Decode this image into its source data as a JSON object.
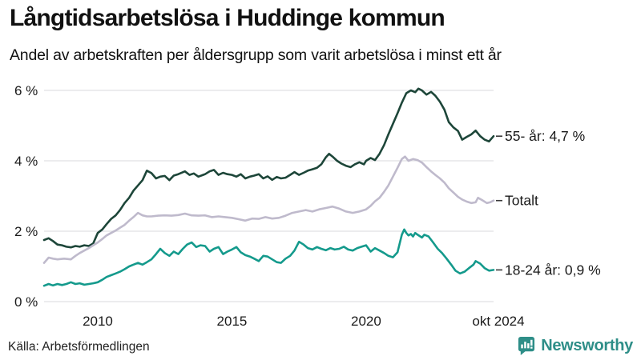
{
  "footer": {
    "source": "Källa: Arbetsförmedlingen",
    "brand": "Newsworthy",
    "brand_color": "#2e8e88",
    "brand_icon": "newsworthy-speech-bubble-chart-icon"
  },
  "chart_data": {
    "type": "line",
    "title": "Långtidsarbetslösa i Huddinge kommun",
    "subtitle": "Andel av arbetskraften per åldersgrupp som varit arbetslösa i minst ett år",
    "unit": "%",
    "grid": "horizontal",
    "legend_position": "right-inline",
    "x_axis": {
      "ticks": [
        "2010",
        "2015",
        "2020",
        "okt 2024"
      ],
      "tick_positions_years": [
        2010,
        2015,
        2020,
        2024.75
      ],
      "range_years": [
        2008.0,
        2024.75
      ]
    },
    "y_axis": {
      "ticks": [
        "0 %",
        "2 %",
        "4 %",
        "6 %"
      ],
      "tick_values": [
        0,
        2,
        4,
        6
      ],
      "ylim": [
        0,
        6.3
      ]
    },
    "series": [
      {
        "name": "55- år",
        "label": "55- år: 4,7 %",
        "latest_value": "4,7 %",
        "color": "#1d4639",
        "points": [
          [
            2008.0,
            1.75
          ],
          [
            2008.17,
            1.8
          ],
          [
            2008.33,
            1.72
          ],
          [
            2008.5,
            1.62
          ],
          [
            2008.67,
            1.6
          ],
          [
            2008.83,
            1.56
          ],
          [
            2009.0,
            1.54
          ],
          [
            2009.17,
            1.58
          ],
          [
            2009.33,
            1.56
          ],
          [
            2009.5,
            1.6
          ],
          [
            2009.67,
            1.58
          ],
          [
            2009.83,
            1.65
          ],
          [
            2010.0,
            1.95
          ],
          [
            2010.17,
            2.05
          ],
          [
            2010.33,
            2.2
          ],
          [
            2010.5,
            2.35
          ],
          [
            2010.67,
            2.45
          ],
          [
            2010.83,
            2.6
          ],
          [
            2011.0,
            2.8
          ],
          [
            2011.17,
            2.95
          ],
          [
            2011.33,
            3.15
          ],
          [
            2011.5,
            3.3
          ],
          [
            2011.67,
            3.45
          ],
          [
            2011.83,
            3.72
          ],
          [
            2012.0,
            3.65
          ],
          [
            2012.17,
            3.5
          ],
          [
            2012.33,
            3.55
          ],
          [
            2012.5,
            3.57
          ],
          [
            2012.67,
            3.45
          ],
          [
            2012.83,
            3.58
          ],
          [
            2013.0,
            3.62
          ],
          [
            2013.25,
            3.7
          ],
          [
            2013.42,
            3.6
          ],
          [
            2013.58,
            3.64
          ],
          [
            2013.75,
            3.55
          ],
          [
            2014.0,
            3.62
          ],
          [
            2014.17,
            3.7
          ],
          [
            2014.33,
            3.74
          ],
          [
            2014.5,
            3.6
          ],
          [
            2014.67,
            3.66
          ],
          [
            2014.83,
            3.62
          ],
          [
            2015.0,
            3.6
          ],
          [
            2015.17,
            3.55
          ],
          [
            2015.33,
            3.62
          ],
          [
            2015.5,
            3.5
          ],
          [
            2015.67,
            3.55
          ],
          [
            2015.83,
            3.58
          ],
          [
            2016.0,
            3.62
          ],
          [
            2016.17,
            3.5
          ],
          [
            2016.33,
            3.56
          ],
          [
            2016.5,
            3.46
          ],
          [
            2016.67,
            3.54
          ],
          [
            2016.83,
            3.5
          ],
          [
            2017.0,
            3.52
          ],
          [
            2017.17,
            3.6
          ],
          [
            2017.33,
            3.68
          ],
          [
            2017.5,
            3.6
          ],
          [
            2017.67,
            3.66
          ],
          [
            2017.83,
            3.72
          ],
          [
            2018.0,
            3.76
          ],
          [
            2018.17,
            3.8
          ],
          [
            2018.33,
            3.9
          ],
          [
            2018.5,
            4.1
          ],
          [
            2018.62,
            4.2
          ],
          [
            2018.75,
            4.12
          ],
          [
            2018.92,
            4.0
          ],
          [
            2019.08,
            3.92
          ],
          [
            2019.25,
            3.86
          ],
          [
            2019.42,
            3.82
          ],
          [
            2019.58,
            3.9
          ],
          [
            2019.75,
            3.96
          ],
          [
            2019.92,
            3.9
          ],
          [
            2020.0,
            4.0
          ],
          [
            2020.17,
            4.08
          ],
          [
            2020.33,
            4.02
          ],
          [
            2020.5,
            4.2
          ],
          [
            2020.67,
            4.45
          ],
          [
            2020.83,
            4.75
          ],
          [
            2021.0,
            5.05
          ],
          [
            2021.17,
            5.35
          ],
          [
            2021.33,
            5.65
          ],
          [
            2021.5,
            5.92
          ],
          [
            2021.67,
            6.0
          ],
          [
            2021.83,
            5.95
          ],
          [
            2021.95,
            6.05
          ],
          [
            2022.08,
            6.0
          ],
          [
            2022.25,
            5.88
          ],
          [
            2022.42,
            5.96
          ],
          [
            2022.58,
            5.85
          ],
          [
            2022.75,
            5.68
          ],
          [
            2022.92,
            5.45
          ],
          [
            2023.08,
            5.1
          ],
          [
            2023.25,
            4.95
          ],
          [
            2023.42,
            4.85
          ],
          [
            2023.58,
            4.6
          ],
          [
            2023.75,
            4.68
          ],
          [
            2023.92,
            4.75
          ],
          [
            2024.08,
            4.86
          ],
          [
            2024.25,
            4.7
          ],
          [
            2024.42,
            4.6
          ],
          [
            2024.58,
            4.55
          ],
          [
            2024.67,
            4.63
          ],
          [
            2024.75,
            4.7
          ]
        ]
      },
      {
        "name": "Totalt",
        "label": "Totalt",
        "latest_value": null,
        "color": "#bfbacc",
        "points": [
          [
            2008.0,
            1.1
          ],
          [
            2008.17,
            1.25
          ],
          [
            2008.33,
            1.22
          ],
          [
            2008.5,
            1.2
          ],
          [
            2008.75,
            1.22
          ],
          [
            2009.0,
            1.2
          ],
          [
            2009.17,
            1.3
          ],
          [
            2009.33,
            1.38
          ],
          [
            2009.5,
            1.45
          ],
          [
            2009.67,
            1.52
          ],
          [
            2009.83,
            1.6
          ],
          [
            2010.0,
            1.68
          ],
          [
            2010.17,
            1.78
          ],
          [
            2010.33,
            1.88
          ],
          [
            2010.5,
            1.95
          ],
          [
            2010.67,
            2.02
          ],
          [
            2010.83,
            2.1
          ],
          [
            2011.0,
            2.18
          ],
          [
            2011.17,
            2.3
          ],
          [
            2011.33,
            2.4
          ],
          [
            2011.5,
            2.52
          ],
          [
            2011.67,
            2.45
          ],
          [
            2011.83,
            2.42
          ],
          [
            2012.0,
            2.42
          ],
          [
            2012.25,
            2.44
          ],
          [
            2012.5,
            2.45
          ],
          [
            2012.75,
            2.44
          ],
          [
            2013.0,
            2.46
          ],
          [
            2013.25,
            2.5
          ],
          [
            2013.5,
            2.45
          ],
          [
            2013.75,
            2.44
          ],
          [
            2014.0,
            2.45
          ],
          [
            2014.25,
            2.4
          ],
          [
            2014.5,
            2.42
          ],
          [
            2014.75,
            2.4
          ],
          [
            2015.0,
            2.38
          ],
          [
            2015.25,
            2.34
          ],
          [
            2015.5,
            2.3
          ],
          [
            2015.75,
            2.36
          ],
          [
            2016.0,
            2.35
          ],
          [
            2016.25,
            2.4
          ],
          [
            2016.5,
            2.36
          ],
          [
            2016.75,
            2.38
          ],
          [
            2017.0,
            2.44
          ],
          [
            2017.25,
            2.52
          ],
          [
            2017.5,
            2.56
          ],
          [
            2017.75,
            2.6
          ],
          [
            2018.0,
            2.56
          ],
          [
            2018.25,
            2.62
          ],
          [
            2018.5,
            2.66
          ],
          [
            2018.75,
            2.7
          ],
          [
            2019.0,
            2.64
          ],
          [
            2019.25,
            2.56
          ],
          [
            2019.5,
            2.52
          ],
          [
            2019.75,
            2.56
          ],
          [
            2020.0,
            2.62
          ],
          [
            2020.17,
            2.72
          ],
          [
            2020.33,
            2.85
          ],
          [
            2020.5,
            2.95
          ],
          [
            2020.67,
            3.12
          ],
          [
            2020.83,
            3.3
          ],
          [
            2021.0,
            3.55
          ],
          [
            2021.17,
            3.8
          ],
          [
            2021.33,
            4.05
          ],
          [
            2021.45,
            4.12
          ],
          [
            2021.58,
            4.0
          ],
          [
            2021.75,
            4.05
          ],
          [
            2021.92,
            4.02
          ],
          [
            2022.08,
            3.95
          ],
          [
            2022.25,
            3.82
          ],
          [
            2022.42,
            3.7
          ],
          [
            2022.58,
            3.6
          ],
          [
            2022.75,
            3.5
          ],
          [
            2022.92,
            3.38
          ],
          [
            2023.08,
            3.22
          ],
          [
            2023.25,
            3.1
          ],
          [
            2023.42,
            2.98
          ],
          [
            2023.58,
            2.9
          ],
          [
            2023.75,
            2.84
          ],
          [
            2023.92,
            2.8
          ],
          [
            2024.08,
            2.82
          ],
          [
            2024.17,
            2.95
          ],
          [
            2024.33,
            2.88
          ],
          [
            2024.5,
            2.8
          ],
          [
            2024.62,
            2.82
          ],
          [
            2024.75,
            2.87
          ]
        ]
      },
      {
        "name": "18-24 år",
        "label": "18-24 år: 0,9 %",
        "latest_value": "0,9 %",
        "color": "#149a8c",
        "points": [
          [
            2008.0,
            0.45
          ],
          [
            2008.17,
            0.5
          ],
          [
            2008.33,
            0.46
          ],
          [
            2008.5,
            0.5
          ],
          [
            2008.67,
            0.47
          ],
          [
            2008.83,
            0.5
          ],
          [
            2009.0,
            0.55
          ],
          [
            2009.17,
            0.5
          ],
          [
            2009.33,
            0.52
          ],
          [
            2009.5,
            0.48
          ],
          [
            2009.67,
            0.5
          ],
          [
            2009.83,
            0.52
          ],
          [
            2010.0,
            0.55
          ],
          [
            2010.17,
            0.62
          ],
          [
            2010.33,
            0.7
          ],
          [
            2010.5,
            0.75
          ],
          [
            2010.67,
            0.8
          ],
          [
            2010.83,
            0.85
          ],
          [
            2011.0,
            0.92
          ],
          [
            2011.17,
            1.0
          ],
          [
            2011.33,
            1.05
          ],
          [
            2011.5,
            1.1
          ],
          [
            2011.67,
            1.05
          ],
          [
            2011.83,
            1.12
          ],
          [
            2012.0,
            1.2
          ],
          [
            2012.17,
            1.35
          ],
          [
            2012.33,
            1.5
          ],
          [
            2012.5,
            1.38
          ],
          [
            2012.67,
            1.3
          ],
          [
            2012.83,
            1.42
          ],
          [
            2013.0,
            1.35
          ],
          [
            2013.17,
            1.5
          ],
          [
            2013.33,
            1.62
          ],
          [
            2013.5,
            1.68
          ],
          [
            2013.67,
            1.55
          ],
          [
            2013.83,
            1.6
          ],
          [
            2014.0,
            1.58
          ],
          [
            2014.17,
            1.42
          ],
          [
            2014.33,
            1.5
          ],
          [
            2014.5,
            1.55
          ],
          [
            2014.67,
            1.35
          ],
          [
            2014.83,
            1.42
          ],
          [
            2015.0,
            1.48
          ],
          [
            2015.17,
            1.55
          ],
          [
            2015.33,
            1.4
          ],
          [
            2015.5,
            1.32
          ],
          [
            2015.67,
            1.28
          ],
          [
            2015.83,
            1.22
          ],
          [
            2016.0,
            1.15
          ],
          [
            2016.17,
            1.3
          ],
          [
            2016.33,
            1.28
          ],
          [
            2016.5,
            1.2
          ],
          [
            2016.67,
            1.12
          ],
          [
            2016.83,
            1.1
          ],
          [
            2017.0,
            1.22
          ],
          [
            2017.17,
            1.3
          ],
          [
            2017.33,
            1.45
          ],
          [
            2017.5,
            1.7
          ],
          [
            2017.67,
            1.62
          ],
          [
            2017.83,
            1.52
          ],
          [
            2018.0,
            1.48
          ],
          [
            2018.17,
            1.55
          ],
          [
            2018.33,
            1.5
          ],
          [
            2018.5,
            1.46
          ],
          [
            2018.67,
            1.52
          ],
          [
            2018.83,
            1.48
          ],
          [
            2019.0,
            1.5
          ],
          [
            2019.17,
            1.56
          ],
          [
            2019.33,
            1.48
          ],
          [
            2019.5,
            1.45
          ],
          [
            2019.67,
            1.52
          ],
          [
            2019.83,
            1.56
          ],
          [
            2020.0,
            1.6
          ],
          [
            2020.17,
            1.42
          ],
          [
            2020.33,
            1.52
          ],
          [
            2020.5,
            1.45
          ],
          [
            2020.67,
            1.38
          ],
          [
            2020.83,
            1.3
          ],
          [
            2021.0,
            1.26
          ],
          [
            2021.17,
            1.4
          ],
          [
            2021.33,
            1.9
          ],
          [
            2021.42,
            2.05
          ],
          [
            2021.5,
            1.95
          ],
          [
            2021.58,
            1.88
          ],
          [
            2021.67,
            1.92
          ],
          [
            2021.75,
            1.85
          ],
          [
            2021.83,
            1.95
          ],
          [
            2021.92,
            1.9
          ],
          [
            2022.08,
            1.82
          ],
          [
            2022.17,
            1.9
          ],
          [
            2022.33,
            1.85
          ],
          [
            2022.5,
            1.68
          ],
          [
            2022.67,
            1.5
          ],
          [
            2022.83,
            1.38
          ],
          [
            2023.0,
            1.22
          ],
          [
            2023.17,
            1.05
          ],
          [
            2023.33,
            0.88
          ],
          [
            2023.5,
            0.8
          ],
          [
            2023.67,
            0.85
          ],
          [
            2023.83,
            0.95
          ],
          [
            2024.0,
            1.05
          ],
          [
            2024.08,
            1.15
          ],
          [
            2024.25,
            1.08
          ],
          [
            2024.42,
            0.95
          ],
          [
            2024.58,
            0.88
          ],
          [
            2024.75,
            0.9
          ]
        ]
      }
    ]
  }
}
